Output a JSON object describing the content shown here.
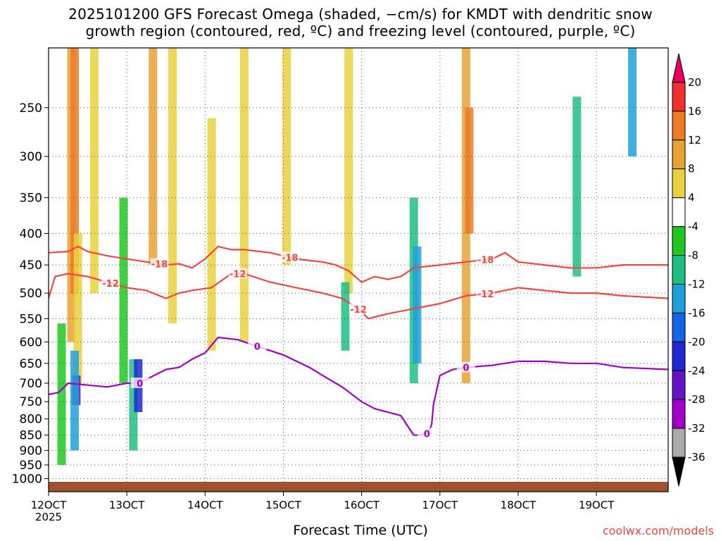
{
  "title": {
    "line1": "2025101200 GFS Forecast Omega (shaded, −cm/s) for KMDT with dendritic snow",
    "line2": "growth region (contoured, red, ºC) and freezing level (contoured, purple, ºC)"
  },
  "xlabel": "Forecast Time (UTC)",
  "watermark": "coolwx.com/models",
  "chart_data": {
    "type": "heatmap",
    "title": "2025101200 GFS Forecast Omega (shaded, −cm/s) for KMDT with dendritic snow growth region (contoured, red, ºC) and freezing level (contoured, purple, ºC)",
    "xlabel": "Forecast Time (UTC)",
    "ylabel": "",
    "x_range_hours": [
      0,
      190
    ],
    "x_ticks": [
      {
        "hour": 0,
        "label": "12OCT",
        "sublabel": "2025"
      },
      {
        "hour": 24,
        "label": "13OCT"
      },
      {
        "hour": 48,
        "label": "14OCT"
      },
      {
        "hour": 72,
        "label": "15OCT"
      },
      {
        "hour": 96,
        "label": "16OCT"
      },
      {
        "hour": 120,
        "label": "17OCT"
      },
      {
        "hour": 144,
        "label": "18OCT"
      },
      {
        "hour": 168,
        "label": "19OCT"
      }
    ],
    "y_scale": "log-pressure (hPa, inverted)",
    "y_range_hpa": [
      200,
      1050
    ],
    "y_ticks": [
      250,
      300,
      350,
      400,
      450,
      500,
      550,
      600,
      650,
      700,
      750,
      800,
      850,
      900,
      950,
      1000
    ],
    "grid": true,
    "colorbar": {
      "labels": [
        20,
        16,
        12,
        8,
        4,
        -4,
        -8,
        -12,
        -16,
        -20,
        -24,
        -28,
        -32,
        -36
      ],
      "colors": [
        "#e8005a",
        "#f03030",
        "#ef7a26",
        "#e8a232",
        "#ead23c",
        "#ffffff",
        "#1ec81e",
        "#1ebe82",
        "#1ea0dc",
        "#1464e6",
        "#1e28d2",
        "#6414c8",
        "#a000c8",
        "#aaaaaa",
        "#000000"
      ]
    },
    "omega_cells": [
      {
        "hour": 7,
        "p_top": 200,
        "p_bot": 600,
        "value": 10
      },
      {
        "hour": 8,
        "p_top": 200,
        "p_bot": 500,
        "value": 14
      },
      {
        "hour": 9,
        "p_top": 400,
        "p_bot": 700,
        "value": 6
      },
      {
        "hour": 8.5,
        "p_top": 680,
        "p_bot": 760,
        "value": -24
      },
      {
        "hour": 8,
        "p_top": 620,
        "p_bot": 900,
        "value": -12
      },
      {
        "hour": 4,
        "p_top": 560,
        "p_bot": 950,
        "value": -6
      },
      {
        "hour": 14,
        "p_top": 200,
        "p_bot": 500,
        "value": 5
      },
      {
        "hour": 26,
        "p_top": 640,
        "p_bot": 900,
        "value": -10
      },
      {
        "hour": 27.5,
        "p_top": 640,
        "p_bot": 780,
        "value": -20
      },
      {
        "hour": 23,
        "p_top": 350,
        "p_bot": 700,
        "value": -6
      },
      {
        "hour": 32,
        "p_top": 200,
        "p_bot": 450,
        "value": 10
      },
      {
        "hour": 38,
        "p_top": 200,
        "p_bot": 560,
        "value": 8
      },
      {
        "hour": 50,
        "p_top": 260,
        "p_bot": 620,
        "value": 6
      },
      {
        "hour": 60,
        "p_top": 200,
        "p_bot": 600,
        "value": 5
      },
      {
        "hour": 73,
        "p_top": 200,
        "p_bot": 450,
        "value": 6
      },
      {
        "hour": 92,
        "p_top": 200,
        "p_bot": 500,
        "value": 8
      },
      {
        "hour": 91,
        "p_top": 480,
        "p_bot": 620,
        "value": -8
      },
      {
        "hour": 112,
        "p_top": 350,
        "p_bot": 700,
        "value": -10
      },
      {
        "hour": 113,
        "p_top": 420,
        "p_bot": 650,
        "value": -14
      },
      {
        "hour": 128,
        "p_top": 200,
        "p_bot": 700,
        "value": 10
      },
      {
        "hour": 129,
        "p_top": 250,
        "p_bot": 400,
        "value": 14
      },
      {
        "hour": 162,
        "p_top": 240,
        "p_bot": 470,
        "value": -8
      },
      {
        "hour": 179,
        "p_top": 200,
        "p_bot": 300,
        "value": -12
      }
    ],
    "series": [
      {
        "name": "-18",
        "color": "#f0463c",
        "x": [
          0,
          6,
          9,
          12,
          18,
          24,
          30,
          36,
          40,
          44,
          48,
          52,
          56,
          60,
          68,
          76,
          84,
          88,
          92,
          96,
          100,
          104,
          108,
          112,
          120,
          128,
          136,
          140,
          144,
          152,
          160,
          168,
          176,
          190
        ],
        "y": [
          430,
          428,
          420,
          428,
          435,
          440,
          445,
          450,
          448,
          455,
          440,
          420,
          425,
          425,
          430,
          440,
          445,
          450,
          460,
          480,
          470,
          475,
          470,
          455,
          450,
          445,
          440,
          430,
          445,
          450,
          455,
          455,
          450,
          450
        ]
      },
      {
        "name": "-12",
        "color": "#f0463c",
        "x": [
          0,
          2,
          6,
          12,
          18,
          24,
          30,
          36,
          40,
          44,
          50,
          56,
          60,
          68,
          76,
          84,
          90,
          96,
          98,
          104,
          112,
          120,
          128,
          136,
          144,
          152,
          160,
          168,
          176,
          190
        ],
        "y": [
          510,
          470,
          465,
          470,
          480,
          490,
          495,
          510,
          500,
          495,
          490,
          465,
          465,
          480,
          490,
          500,
          510,
          535,
          550,
          540,
          530,
          520,
          505,
          500,
          490,
          495,
          500,
          500,
          505,
          510
        ]
      },
      {
        "name": "0",
        "color": "#a000c8",
        "x": [
          0,
          3,
          6,
          12,
          18,
          24,
          28,
          30,
          36,
          40,
          44,
          48,
          52,
          58,
          64,
          72,
          80,
          84,
          90,
          96,
          100,
          104,
          108,
          110,
          112,
          114,
          116,
          117,
          117.5,
          118,
          120,
          124,
          128,
          136,
          144,
          152,
          160,
          168,
          176,
          190
        ],
        "y": [
          730,
          725,
          700,
          705,
          710,
          700,
          700,
          690,
          665,
          660,
          640,
          625,
          590,
          595,
          610,
          630,
          660,
          680,
          710,
          750,
          770,
          780,
          790,
          820,
          850,
          850,
          845,
          830,
          815,
          760,
          680,
          665,
          660,
          655,
          645,
          645,
          650,
          650,
          660,
          665
        ]
      }
    ]
  }
}
